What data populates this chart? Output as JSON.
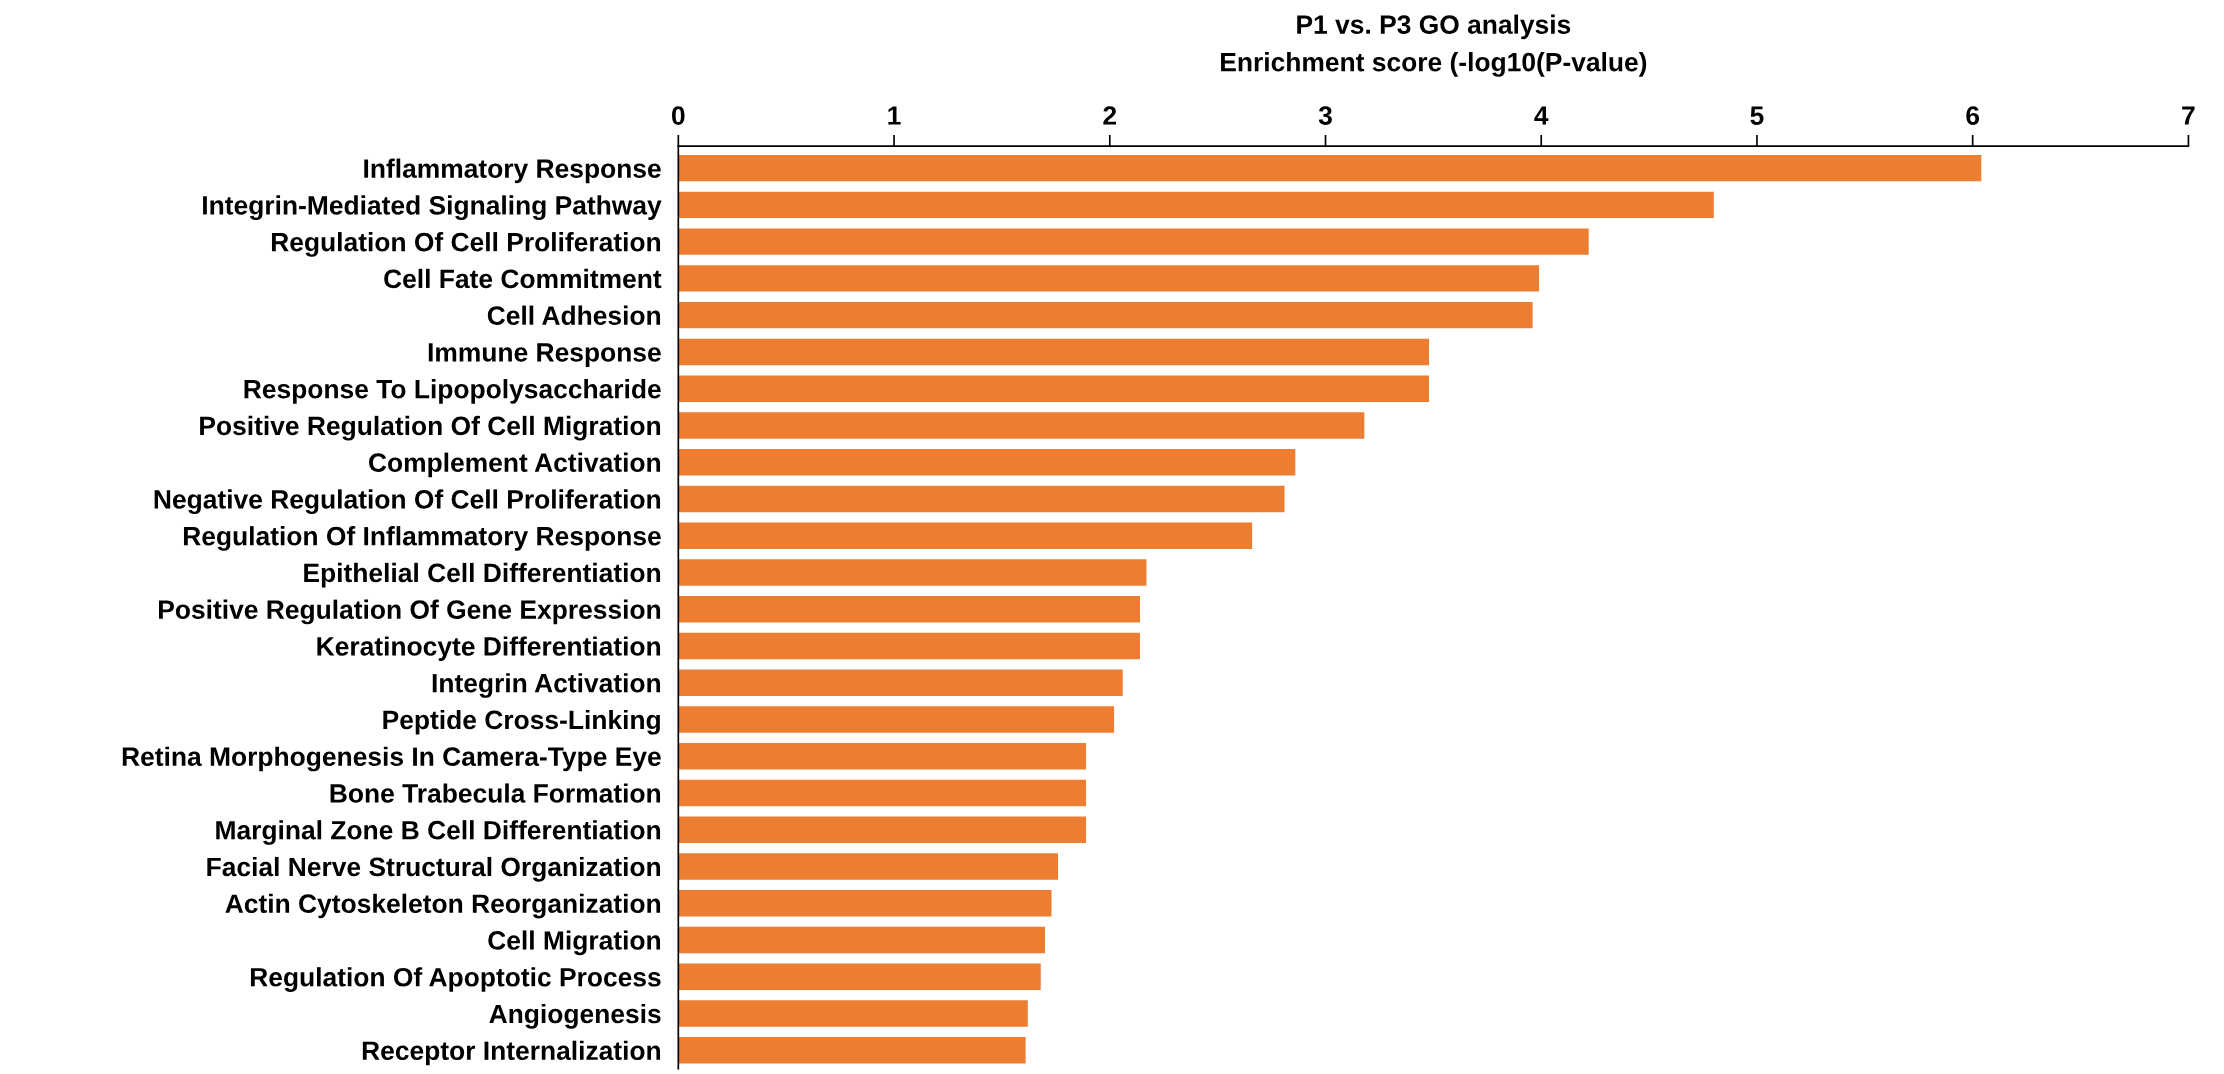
{
  "chart_data": {
    "type": "bar",
    "orientation": "horizontal",
    "title": "P1 vs. P3 GO analysis",
    "xlabel": "Enrichment score (-log10(P-value)",
    "categories": [
      "Inflammatory Response",
      "Integrin-Mediated Signaling Pathway",
      "Regulation Of Cell Proliferation",
      "Cell Fate Commitment",
      "Cell Adhesion",
      "Immune Response",
      "Response To Lipopolysaccharide",
      "Positive Regulation Of Cell Migration",
      "Complement Activation",
      "Negative Regulation Of Cell Proliferation",
      "Regulation Of Inflammatory Response",
      "Epithelial Cell Differentiation",
      "Positive Regulation Of Gene Expression",
      "Keratinocyte Differentiation",
      "Integrin Activation",
      "Peptide Cross-Linking",
      "Retina Morphogenesis In Camera-Type Eye",
      "Bone Trabecula Formation",
      "Marginal Zone B Cell Differentiation",
      "Facial Nerve Structural Organization",
      "Actin Cytoskeleton Reorganization",
      "Cell Migration",
      "Regulation Of Apoptotic Process",
      "Angiogenesis",
      "Receptor Internalization"
    ],
    "values": [
      6.04,
      4.8,
      4.22,
      3.99,
      3.96,
      3.48,
      3.48,
      3.18,
      2.86,
      2.81,
      2.66,
      2.17,
      2.14,
      2.14,
      2.06,
      2.02,
      1.89,
      1.89,
      1.89,
      1.76,
      1.73,
      1.7,
      1.68,
      1.62,
      1.61
    ],
    "color": "#ed7d31",
    "xlim": [
      0,
      7
    ],
    "xticks": [
      0,
      1,
      2,
      3,
      4,
      5,
      6,
      7
    ],
    "grid": false
  }
}
